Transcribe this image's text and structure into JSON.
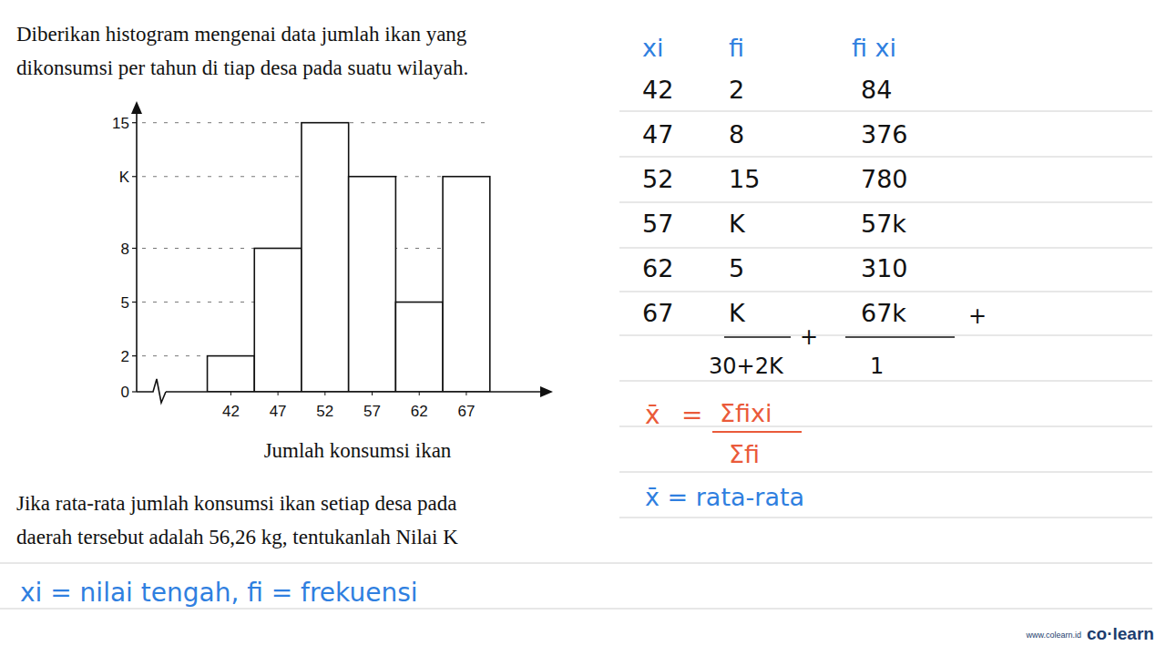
{
  "problem": {
    "intro": [
      "Diberikan histogram mengenai data jumlah ikan yang",
      "dikonsumsi per tahun di tiap desa pada suatu wilayah."
    ],
    "question": [
      "Jika rata-rata jumlah konsumsi ikan setiap desa pada",
      "daerah tersebut adalah 56,26 kg, tentukanlah Nilai K"
    ]
  },
  "chart_data": {
    "type": "histogram",
    "x_label": "Jumlah konsumsi ikan",
    "bins": [
      39.5,
      44.5,
      49.5,
      54.5,
      59.5,
      64.5,
      69.5
    ],
    "values": [
      2,
      8,
      15,
      12,
      5,
      12
    ],
    "color": "#ffffff",
    "xlim": [
      32,
      76
    ],
    "xticks": [
      42,
      47,
      52,
      57,
      62,
      67
    ],
    "ylim": [
      0,
      16
    ],
    "yticks": [
      0,
      2,
      5,
      8,
      {
        "value": 12,
        "label": "K"
      },
      15
    ],
    "grid": true
  },
  "solution": {
    "table": {
      "header": [
        "xi",
        "fi",
        "fi xi"
      ],
      "rows": [
        [
          "42",
          "2",
          "84"
        ],
        [
          "47",
          "8",
          "376"
        ],
        [
          "52",
          "15",
          "780"
        ],
        [
          "57",
          "K",
          "57k"
        ],
        [
          "62",
          "5",
          "310"
        ],
        [
          "67",
          "K",
          "67k"
        ]
      ],
      "sum": [
        "30+2K",
        "1"
      ],
      "plus": "+"
    },
    "formula": {
      "lhs": "x̄",
      "eq": "=",
      "numerator": "Σfixi",
      "denominator": "Σfi"
    },
    "mean_note": "x̄ = rata-rata",
    "symbol_note": "xi = nilai tengah, fi = frekuensi"
  },
  "footer": {
    "url": "www.colearn.id",
    "brand": "co·learn"
  }
}
